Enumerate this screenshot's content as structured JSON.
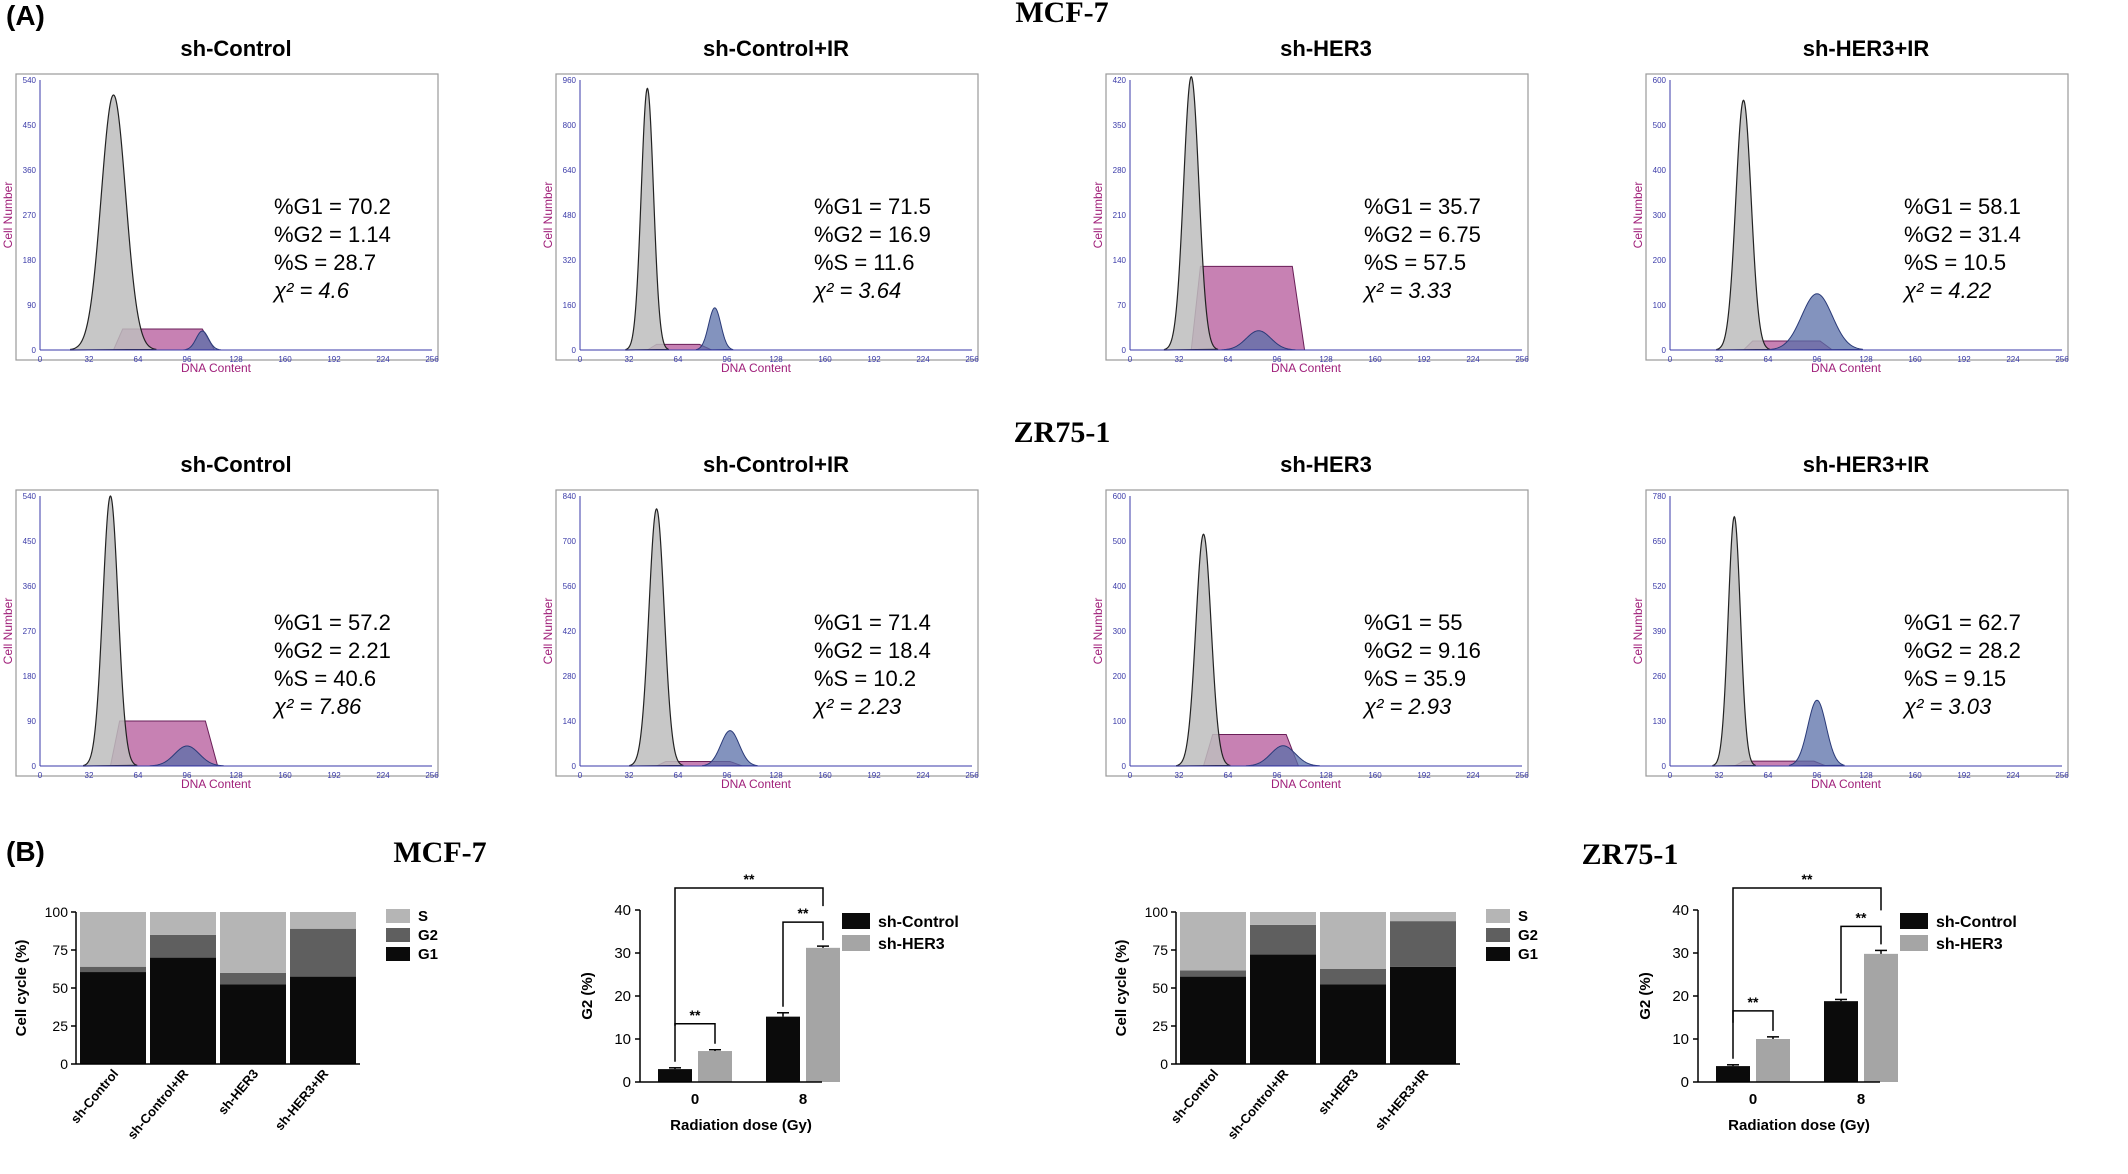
{
  "panel_labels": {
    "a": "(A)",
    "b": "(B)"
  },
  "section_titles": {
    "mcf7": "MCF-7",
    "zr75": "ZR75-1",
    "mcf7_b": "MCF-7",
    "zr75_b": "ZR75-1"
  },
  "colors": {
    "g1_fill": "#bdbdbd",
    "s_fill": "#b4579a",
    "g2_fill": "#5a6fa8",
    "axis_blue": "#3a3aa8",
    "axis_label": "#a0207a",
    "bar_g1": "#0b0b0b",
    "bar_g2": "#5f5f5f",
    "bar_s": "#b5b5b5",
    "bar_control": "#0b0b0b",
    "bar_her3": "#a5a5a5"
  },
  "chart_data": [
    {
      "type": "area",
      "group": "MCF-7",
      "title": "sh-Control",
      "xlabel": "DNA Content",
      "ylabel": "Cell Number",
      "xticks": [
        "0",
        "32",
        "64",
        "96",
        "128",
        "160",
        "192",
        "224",
        "256"
      ],
      "yticks": [
        "0",
        "90",
        "180",
        "270",
        "360",
        "450",
        "540"
      ],
      "ylim": [
        0,
        540
      ],
      "xlim": [
        0,
        256
      ],
      "g1_peak": {
        "x": 48,
        "height": 510,
        "width": 8
      },
      "s_phase": {
        "x_start": 48,
        "x_end": 108,
        "height": 42
      },
      "g2_peak": {
        "x": 106,
        "height": 38,
        "width": 4
      },
      "stats": [
        "%G1 = 70.2",
        "%G2 = 1.14",
        "%S = 28.7",
        "χ² = 4.6"
      ]
    },
    {
      "type": "area",
      "group": "MCF-7",
      "title": "sh-Control+IR",
      "xlabel": "DNA Content",
      "ylabel": "Cell Number",
      "xticks": [
        "0",
        "32",
        "64",
        "96",
        "128",
        "160",
        "192",
        "224",
        "256"
      ],
      "yticks": [
        "0",
        "160",
        "320",
        "480",
        "640",
        "800",
        "960"
      ],
      "ylim": [
        0,
        960
      ],
      "xlim": [
        0,
        256
      ],
      "g1_peak": {
        "x": 44,
        "height": 930,
        "width": 4
      },
      "s_phase": {
        "x_start": 44,
        "x_end": 80,
        "height": 20
      },
      "g2_peak": {
        "x": 88,
        "height": 150,
        "width": 4
      },
      "stats": [
        "%G1 = 71.5",
        "%G2 = 16.9",
        "%S = 11.6",
        "χ² = 3.64"
      ]
    },
    {
      "type": "area",
      "group": "MCF-7",
      "title": "sh-HER3",
      "xlabel": "DNA Content",
      "ylabel": "Cell Number",
      "xticks": [
        "0",
        "32",
        "64",
        "96",
        "128",
        "160",
        "192",
        "224",
        "256"
      ],
      "yticks": [
        "0",
        "70",
        "140",
        "210",
        "280",
        "350",
        "420"
      ],
      "ylim": [
        0,
        420
      ],
      "xlim": [
        0,
        256
      ],
      "g1_peak": {
        "x": 40,
        "height": 425,
        "width": 5
      },
      "s_phase": {
        "x_start": 40,
        "x_end": 108,
        "height": 130
      },
      "g2_peak": {
        "x": 84,
        "height": 30,
        "width": 8
      },
      "stats": [
        "%G1 = 35.7",
        "%G2 = 6.75",
        "%S = 57.5",
        "χ² = 3.33"
      ]
    },
    {
      "type": "area",
      "group": "MCF-7",
      "title": "sh-HER3+IR",
      "xlabel": "DNA Content",
      "ylabel": "Cell Number",
      "xticks": [
        "0",
        "32",
        "64",
        "96",
        "128",
        "160",
        "192",
        "224",
        "256"
      ],
      "yticks": [
        "0",
        "100",
        "200",
        "300",
        "400",
        "500",
        "600"
      ],
      "ylim": [
        0,
        600
      ],
      "xlim": [
        0,
        256
      ],
      "g1_peak": {
        "x": 48,
        "height": 555,
        "width": 5
      },
      "s_phase": {
        "x_start": 48,
        "x_end": 100,
        "height": 20
      },
      "g2_peak": {
        "x": 96,
        "height": 125,
        "width": 10
      },
      "stats": [
        "%G1 = 58.1",
        "%G2 = 31.4",
        "%S = 10.5",
        "χ² = 4.22"
      ]
    },
    {
      "type": "area",
      "group": "ZR75-1",
      "title": "sh-Control",
      "xlabel": "DNA Content",
      "ylabel": "Cell Number",
      "xticks": [
        "0",
        "32",
        "64",
        "96",
        "128",
        "160",
        "192",
        "224",
        "256"
      ],
      "yticks": [
        "0",
        "90",
        "180",
        "270",
        "360",
        "450",
        "540"
      ],
      "ylim": [
        0,
        540
      ],
      "xlim": [
        0,
        256
      ],
      "g1_peak": {
        "x": 46,
        "height": 540,
        "width": 5
      },
      "s_phase": {
        "x_start": 46,
        "x_end": 110,
        "height": 90
      },
      "g2_peak": {
        "x": 96,
        "height": 40,
        "width": 8
      },
      "stats": [
        "%G1 = 57.2",
        "%G2 = 2.21",
        "%S = 40.6",
        "χ² = 7.86"
      ]
    },
    {
      "type": "area",
      "group": "ZR75-1",
      "title": "sh-Control+IR",
      "xlabel": "DNA Content",
      "ylabel": "Cell Number",
      "xticks": [
        "0",
        "32",
        "64",
        "96",
        "128",
        "160",
        "192",
        "224",
        "256"
      ],
      "yticks": [
        "0",
        "140",
        "280",
        "420",
        "560",
        "700",
        "840"
      ],
      "ylim": [
        0,
        840
      ],
      "xlim": [
        0,
        256
      ],
      "g1_peak": {
        "x": 50,
        "height": 800,
        "width": 5
      },
      "s_phase": {
        "x_start": 50,
        "x_end": 100,
        "height": 14
      },
      "g2_peak": {
        "x": 98,
        "height": 110,
        "width": 6
      },
      "stats": [
        "%G1 = 71.4",
        "%G2 = 18.4",
        "%S = 10.2",
        "χ² = 2.23"
      ]
    },
    {
      "type": "area",
      "group": "ZR75-1",
      "title": "sh-HER3",
      "xlabel": "DNA Content",
      "ylabel": "Cell Number",
      "xticks": [
        "0",
        "32",
        "64",
        "96",
        "128",
        "160",
        "192",
        "224",
        "256"
      ],
      "yticks": [
        "0",
        "100",
        "200",
        "300",
        "400",
        "500",
        "600"
      ],
      "ylim": [
        0,
        600
      ],
      "xlim": [
        0,
        256
      ],
      "g1_peak": {
        "x": 48,
        "height": 515,
        "width": 5
      },
      "s_phase": {
        "x_start": 48,
        "x_end": 104,
        "height": 70
      },
      "g2_peak": {
        "x": 100,
        "height": 45,
        "width": 8
      },
      "stats": [
        "%G1 = 55",
        "%G2 = 9.16",
        "%S = 35.9",
        "χ² = 2.93"
      ]
    },
    {
      "type": "area",
      "group": "ZR75-1",
      "title": "sh-HER3+IR",
      "xlabel": "DNA Content",
      "ylabel": "Cell Number",
      "xticks": [
        "0",
        "32",
        "64",
        "96",
        "128",
        "160",
        "192",
        "224",
        "256"
      ],
      "yticks": [
        "0",
        "130",
        "260",
        "390",
        "520",
        "650",
        "780"
      ],
      "ylim": [
        0,
        780
      ],
      "xlim": [
        0,
        256
      ],
      "g1_peak": {
        "x": 42,
        "height": 720,
        "width": 4
      },
      "s_phase": {
        "x_start": 42,
        "x_end": 96,
        "height": 14
      },
      "g2_peak": {
        "x": 96,
        "height": 190,
        "width": 6
      },
      "stats": [
        "%G1 = 62.7",
        "%G2 = 28.2",
        "%S = 9.15",
        "χ² = 3.03"
      ]
    },
    {
      "type": "bar",
      "stacked": true,
      "group": "MCF-7",
      "categories": [
        "sh-Control",
        "sh-Control+IR",
        "sh-HER3",
        "sh-HER3+IR"
      ],
      "ylabel": "Cell cycle (%)",
      "ylim": [
        0,
        100
      ],
      "yticks": [
        "0",
        "25",
        "50",
        "75",
        "100"
      ],
      "series": [
        {
          "name": "G1",
          "values": [
            60.5,
            70,
            52.5,
            57.5
          ]
        },
        {
          "name": "G2",
          "values": [
            3.5,
            15,
            7.5,
            31.5
          ]
        },
        {
          "name": "S",
          "values": [
            36,
            15,
            40,
            11
          ]
        }
      ],
      "legend": [
        "S",
        "G2",
        "G1"
      ]
    },
    {
      "type": "bar",
      "group": "MCF-7",
      "categories": [
        "0",
        "8"
      ],
      "xlabel": "Radiation dose (Gy)",
      "ylabel": "G2 (%)",
      "ylim": [
        0,
        40
      ],
      "yticks": [
        "0",
        "10",
        "20",
        "30",
        "40"
      ],
      "series": [
        {
          "name": "sh-Control",
          "values": [
            3,
            15.2
          ],
          "errors": [
            0.3,
            0.9
          ]
        },
        {
          "name": "sh-HER3",
          "values": [
            7.2,
            31.2
          ],
          "errors": [
            0.3,
            0.4
          ]
        }
      ],
      "significance": [
        "**",
        "**",
        "**"
      ]
    },
    {
      "type": "bar",
      "stacked": true,
      "group": "ZR75-1",
      "categories": [
        "sh-Control",
        "sh-Control+IR",
        "sh-HER3",
        "sh-HER3+IR"
      ],
      "ylabel": "Cell cycle (%)",
      "ylim": [
        0,
        100
      ],
      "yticks": [
        "0",
        "25",
        "50",
        "75",
        "100"
      ],
      "series": [
        {
          "name": "G1",
          "values": [
            57.5,
            72,
            52.5,
            64
          ]
        },
        {
          "name": "G2",
          "values": [
            4,
            19.5,
            10,
            30
          ]
        },
        {
          "name": "S",
          "values": [
            38.5,
            8.5,
            37.5,
            6
          ]
        }
      ],
      "legend": [
        "S",
        "G2",
        "G1"
      ]
    },
    {
      "type": "bar",
      "group": "ZR75-1",
      "categories": [
        "0",
        "8"
      ],
      "xlabel": "Radiation dose (Gy)",
      "ylabel": "G2 (%)",
      "ylim": [
        0,
        40
      ],
      "yticks": [
        "0",
        "10",
        "20",
        "30",
        "40"
      ],
      "series": [
        {
          "name": "sh-Control",
          "values": [
            3.7,
            18.8
          ],
          "errors": [
            0.3,
            0.4
          ]
        },
        {
          "name": "sh-HER3",
          "values": [
            10,
            29.8
          ],
          "errors": [
            0.5,
            0.8
          ]
        }
      ],
      "significance": [
        "**",
        "**",
        "**"
      ]
    }
  ]
}
